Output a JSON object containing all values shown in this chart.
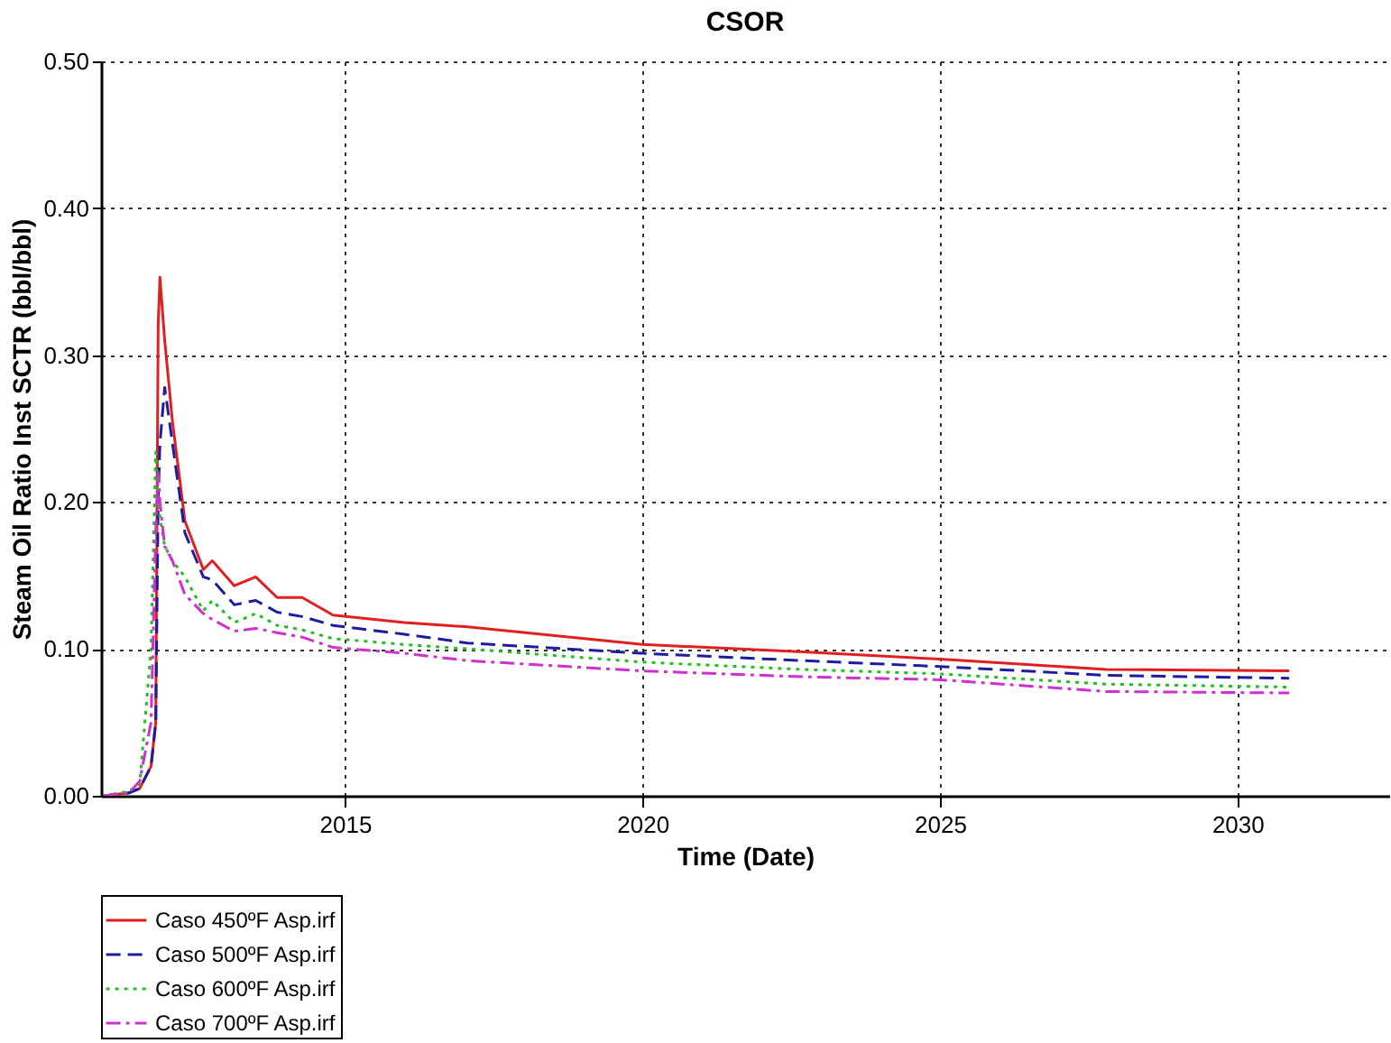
{
  "chart_data": {
    "type": "line",
    "title": "CSOR",
    "xlabel": "Time (Date)",
    "ylabel": "Steam Oil Ratio Inst SCTR (bbl/bbl)",
    "x": [
      2010.95,
      2011.37,
      2011.55,
      2011.74,
      2011.82,
      2011.86,
      2011.89,
      2011.97,
      2012.1,
      2012.31,
      2012.62,
      2012.77,
      2013.14,
      2013.5,
      2013.86,
      2014.28,
      2014.8,
      2016,
      2017.06,
      2020,
      2022.7,
      2025,
      2027.8,
      2030.87
    ],
    "series": [
      {
        "name": "Caso 450ºF Asp.irf",
        "color": "#e02020",
        "line_style": "solid",
        "values": [
          0,
          0.002,
          0.005,
          0.02,
          0.05,
          0.32,
          0.353,
          0.31,
          0.255,
          0.187,
          0.154,
          0.16,
          0.143,
          0.149,
          0.135,
          0.135,
          0.123,
          0.118,
          0.115,
          0.103,
          0.098,
          0.093,
          0.086,
          0.085
        ]
      },
      {
        "name": "Caso 500ºF Asp.irf",
        "color": "#1c1ca0",
        "line_style": "dashed",
        "values": [
          0,
          0.002,
          0.005,
          0.02,
          0.05,
          0.2,
          0.24,
          0.278,
          0.24,
          0.179,
          0.149,
          0.147,
          0.13,
          0.133,
          0.125,
          0.122,
          0.116,
          0.11,
          0.104,
          0.097,
          0.092,
          0.088,
          0.082,
          0.08
        ]
      },
      {
        "name": "Caso 600ºF Asp.irf",
        "color": "#20c020",
        "line_style": "dotted",
        "values": [
          0,
          0.003,
          0.008,
          0.1,
          0.234,
          0.2,
          0.19,
          0.17,
          0.16,
          0.149,
          0.126,
          0.133,
          0.118,
          0.124,
          0.116,
          0.113,
          0.107,
          0.103,
          0.1,
          0.091,
          0.086,
          0.083,
          0.076,
          0.074
        ]
      },
      {
        "name": "Caso 700ºF Asp.irf",
        "color": "#d030d0",
        "line_style": "dashdot",
        "values": [
          0,
          0.002,
          0.01,
          0.05,
          0.18,
          0.22,
          0.2,
          0.17,
          0.16,
          0.137,
          0.124,
          0.12,
          0.112,
          0.114,
          0.111,
          0.108,
          0.101,
          0.097,
          0.092,
          0.085,
          0.081,
          0.079,
          0.071,
          0.07
        ]
      }
    ],
    "xlim": [
      2010.9,
      2032.55
    ],
    "xticks": [
      2015,
      2020,
      2025,
      2030
    ],
    "ylim": [
      0,
      0.5
    ],
    "yticks": [
      {
        "value": 0,
        "label": "0.00"
      },
      {
        "value": 0.1,
        "label": "0.10"
      },
      {
        "value": 0.2,
        "label": "0.20"
      },
      {
        "value": 0.3,
        "label": "0.30"
      },
      {
        "value": 0.4,
        "label": "0.40"
      },
      {
        "value": 0.5,
        "label": "0.50"
      }
    ],
    "grid": true,
    "legend": "bottom"
  }
}
